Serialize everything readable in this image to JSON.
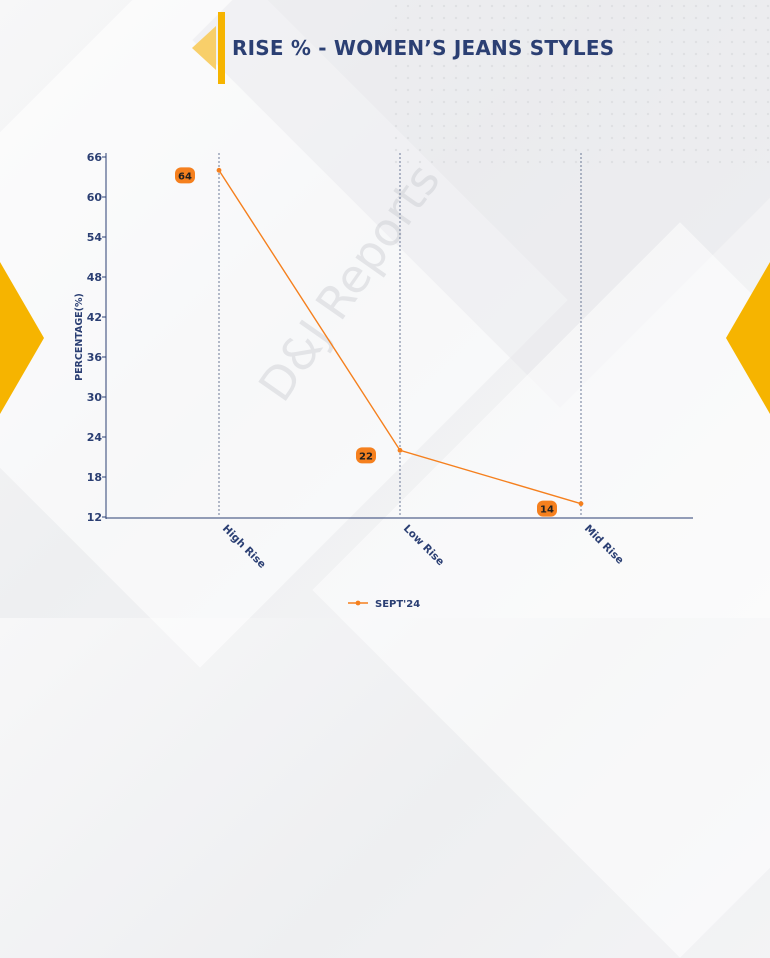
{
  "page": {
    "title": "RISE % - WOMEN’S JEANS STYLES",
    "watermark": "D&J Reports",
    "colors": {
      "accent": "#f6b400",
      "title": "#2b3f73",
      "series": "#f5801e",
      "axis": "#2b3f73"
    }
  },
  "chart_data": {
    "type": "line",
    "title": "RISE % - WOMEN’S JEANS STYLES",
    "xlabel": "",
    "ylabel": "PERCENTAGE(%)",
    "categories": [
      "High Rise",
      "Low Rise",
      "Mid Rise"
    ],
    "series": [
      {
        "name": "SEPT'24",
        "values": [
          64,
          22,
          14
        ],
        "color": "#f5801e"
      }
    ],
    "ylim": [
      12,
      66
    ],
    "yticks": [
      12,
      18,
      24,
      30,
      36,
      42,
      48,
      54,
      60,
      66
    ],
    "grid": "vertical dashed lines at categories",
    "legend": "bottom-center",
    "data_labels": true
  }
}
